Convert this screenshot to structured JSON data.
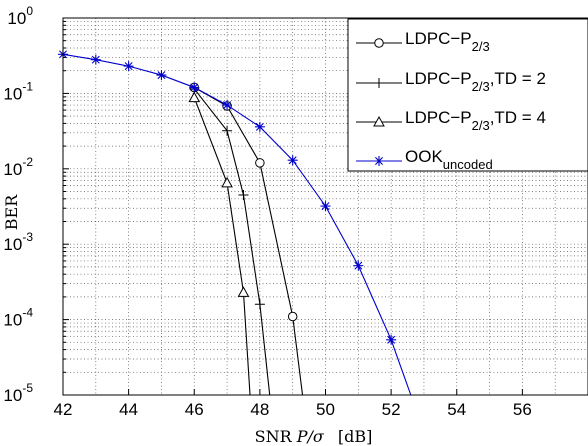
{
  "chart_data": {
    "type": "line",
    "xlabel": "SNR P/σ   [dB]",
    "xlabel_parts": {
      "prefix": "SNR ",
      "var": "P/σ",
      "unit": "[dB]"
    },
    "ylabel": "BER",
    "xlim": [
      42,
      58
    ],
    "ylim": [
      1e-05,
      1
    ],
    "y_scale": "log",
    "grid": true,
    "legend_position": "top-right",
    "x_ticks": [
      "42",
      "44",
      "46",
      "48",
      "50",
      "52",
      "54",
      "56"
    ],
    "y_ticks": [
      {
        "base": "10",
        "exp": "0"
      },
      {
        "base": "10",
        "exp": "-1"
      },
      {
        "base": "10",
        "exp": "-2"
      },
      {
        "base": "10",
        "exp": "-3"
      },
      {
        "base": "10",
        "exp": "-4"
      },
      {
        "base": "10",
        "exp": "-5"
      }
    ],
    "series": [
      {
        "name": "LDPC−P2/3",
        "legend": {
          "main": "LDPC−P",
          "sub": "2/3",
          "rest": ""
        },
        "color": "#000000",
        "marker": "circle",
        "x": [
          46,
          47,
          48,
          49,
          49.3
        ],
        "y": [
          0.12,
          0.068,
          0.012,
          0.00011,
          1e-05
        ],
        "marker_flags": [
          true,
          true,
          true,
          true,
          false
        ]
      },
      {
        "name": "LDPC−P2/3,TD = 2",
        "legend": {
          "main": "LDPC−P",
          "sub": "2/3",
          "rest": ",TD = 2"
        },
        "color": "#000000",
        "marker": "plus",
        "x": [
          46,
          47,
          47.5,
          48,
          48.3
        ],
        "y": [
          0.115,
          0.032,
          0.0045,
          0.00016,
          1e-05
        ],
        "marker_flags": [
          true,
          true,
          true,
          true,
          false
        ]
      },
      {
        "name": "LDPC−P2/3,TD = 4",
        "legend": {
          "main": "LDPC−P",
          "sub": "2/3",
          "rest": ",TD = 4"
        },
        "color": "#000000",
        "marker": "triangle",
        "x": [
          46,
          47,
          47.5,
          47.7
        ],
        "y": [
          0.088,
          0.0065,
          0.00023,
          1e-05
        ],
        "marker_flags": [
          true,
          true,
          true,
          false
        ]
      },
      {
        "name": "OOKuncoded",
        "legend": {
          "main": "OOK",
          "sub": "uncoded",
          "rest": ""
        },
        "color": "#0000cc",
        "marker": "star",
        "x": [
          42,
          43,
          44,
          45,
          46,
          47,
          48,
          49,
          50,
          51,
          52,
          52.6
        ],
        "y": [
          0.33,
          0.28,
          0.23,
          0.175,
          0.12,
          0.07,
          0.036,
          0.013,
          0.0032,
          0.00052,
          5.4e-05,
          1e-05
        ],
        "marker_flags": [
          true,
          true,
          true,
          true,
          true,
          true,
          true,
          true,
          true,
          true,
          true,
          false
        ]
      }
    ]
  }
}
